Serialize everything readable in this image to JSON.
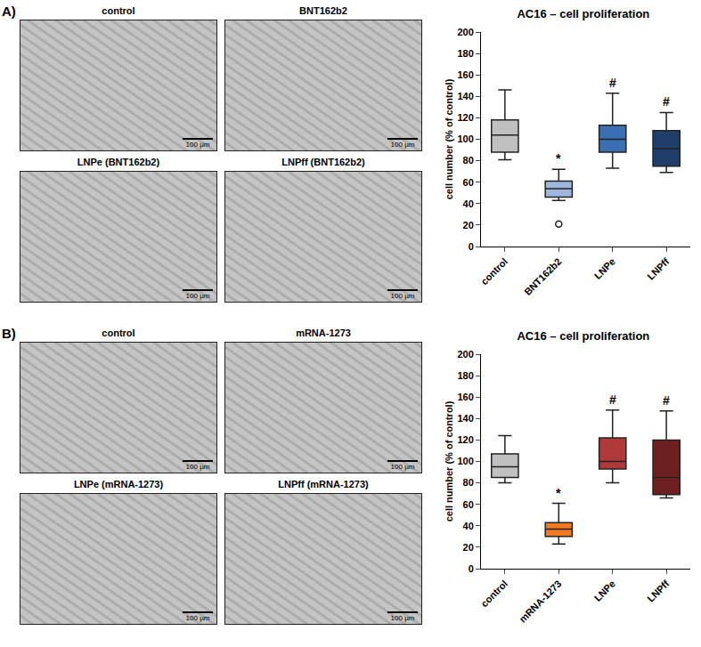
{
  "chart_data": [
    {
      "type": "box",
      "panel": "A)",
      "title": "AC16 – cell proliferation",
      "y_label": "cell number (% of control)",
      "categories": [
        "control",
        "BNT162b2",
        "LNPe",
        "LNPff"
      ],
      "colors": [
        "#c0c0c0",
        "#9db7dd",
        "#3a70b3",
        "#1f3f6a"
      ],
      "min": [
        81,
        43,
        73,
        69
      ],
      "q1": [
        88,
        46,
        88,
        75
      ],
      "median": [
        104,
        54,
        100,
        91
      ],
      "q3": [
        118,
        61,
        113,
        108
      ],
      "max": [
        146,
        72,
        143,
        125
      ],
      "outliers": [
        [],
        [
          21
        ],
        [],
        []
      ],
      "significance": [
        null,
        "*",
        "#",
        "#"
      ],
      "ylim": [
        0,
        200
      ],
      "yticks": [
        0,
        20,
        40,
        60,
        80,
        100,
        120,
        140,
        160,
        180,
        200
      ],
      "grid": false,
      "images": [
        {
          "title": "control",
          "scale_bar": "100 µm"
        },
        {
          "title": "BNT162b2",
          "scale_bar": "100 µm"
        },
        {
          "title": "LNPe (BNT162b2)",
          "scale_bar": "100 µm"
        },
        {
          "title": "LNPff (BNT162b2)",
          "scale_bar": "100 µm"
        }
      ]
    },
    {
      "type": "box",
      "panel": "B)",
      "title": "AC16 – cell proliferation",
      "y_label": "cell number (% of control)",
      "categories": [
        "control",
        "mRNA-1273",
        "LNPe",
        "LNPff"
      ],
      "colors": [
        "#c0c0c0",
        "#f27a22",
        "#b03a3a",
        "#6e1f1f"
      ],
      "min": [
        80,
        23,
        80,
        66
      ],
      "q1": [
        85,
        30,
        93,
        69
      ],
      "median": [
        95,
        37,
        100,
        85
      ],
      "q3": [
        107,
        43,
        122,
        120
      ],
      "max": [
        124,
        61,
        148,
        147
      ],
      "outliers": [
        [],
        [],
        [],
        []
      ],
      "significance": [
        null,
        "*",
        "#",
        "#"
      ],
      "ylim": [
        0,
        200
      ],
      "yticks": [
        0,
        20,
        40,
        60,
        80,
        100,
        120,
        140,
        160,
        180,
        200
      ],
      "grid": false,
      "images": [
        {
          "title": "control",
          "scale_bar": "100 µm"
        },
        {
          "title": "mRNA-1273",
          "scale_bar": "100 µm"
        },
        {
          "title": "LNPe (mRNA-1273)",
          "scale_bar": "100 µm"
        },
        {
          "title": "LNPff (mRNA-1273)",
          "scale_bar": "100 µm"
        }
      ]
    }
  ]
}
